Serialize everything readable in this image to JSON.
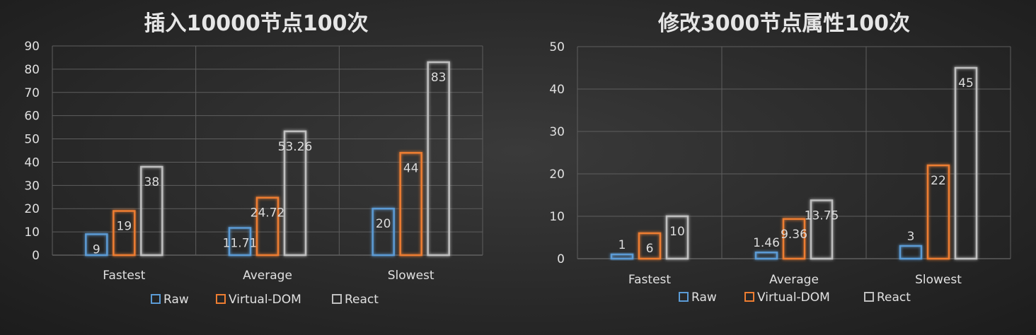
{
  "chart_data": [
    {
      "type": "bar",
      "title": "插入10000节点100次",
      "categories": [
        "Fastest",
        "Average",
        "Slowest"
      ],
      "series": [
        {
          "name": "Raw",
          "values": [
            9,
            11.71,
            20
          ],
          "color": "#5b9bd5"
        },
        {
          "name": "Virtual-DOM",
          "values": [
            19,
            24.72,
            44
          ],
          "color": "#ed7d31"
        },
        {
          "name": "React",
          "values": [
            38,
            53.26,
            83
          ],
          "color": "#bfbfbf"
        }
      ],
      "ylim": [
        0,
        90
      ],
      "yticks": [
        0,
        10,
        20,
        30,
        40,
        50,
        60,
        70,
        80,
        90
      ],
      "grid": true,
      "legend": "bottom"
    },
    {
      "type": "bar",
      "title": "修改3000节点属性100次",
      "categories": [
        "Fastest",
        "Average",
        "Slowest"
      ],
      "series": [
        {
          "name": "Raw",
          "values": [
            1,
            1.46,
            3
          ],
          "color": "#5b9bd5"
        },
        {
          "name": "Virtual-DOM",
          "values": [
            6,
            9.36,
            22
          ],
          "color": "#ed7d31"
        },
        {
          "name": "React",
          "values": [
            10,
            13.75,
            45
          ],
          "color": "#bfbfbf"
        }
      ],
      "ylim": [
        0,
        50
      ],
      "yticks": [
        0,
        10,
        20,
        30,
        40,
        50
      ],
      "grid": true,
      "legend": "bottom"
    }
  ]
}
